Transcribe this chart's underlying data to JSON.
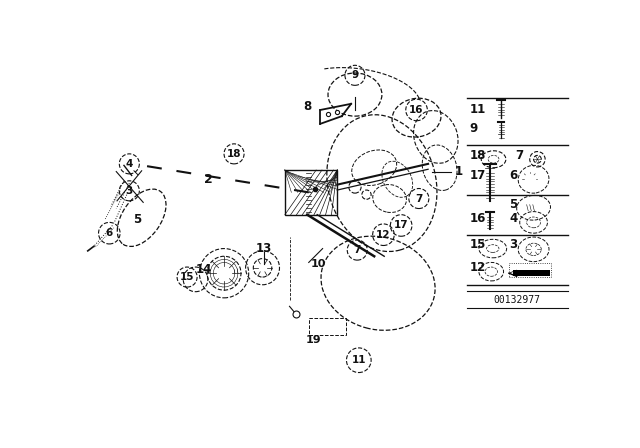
{
  "bg_color": "#ffffff",
  "line_color": "#111111",
  "fig_width": 6.4,
  "fig_height": 4.48,
  "dpi": 100,
  "part_number_stamp": "00132977"
}
